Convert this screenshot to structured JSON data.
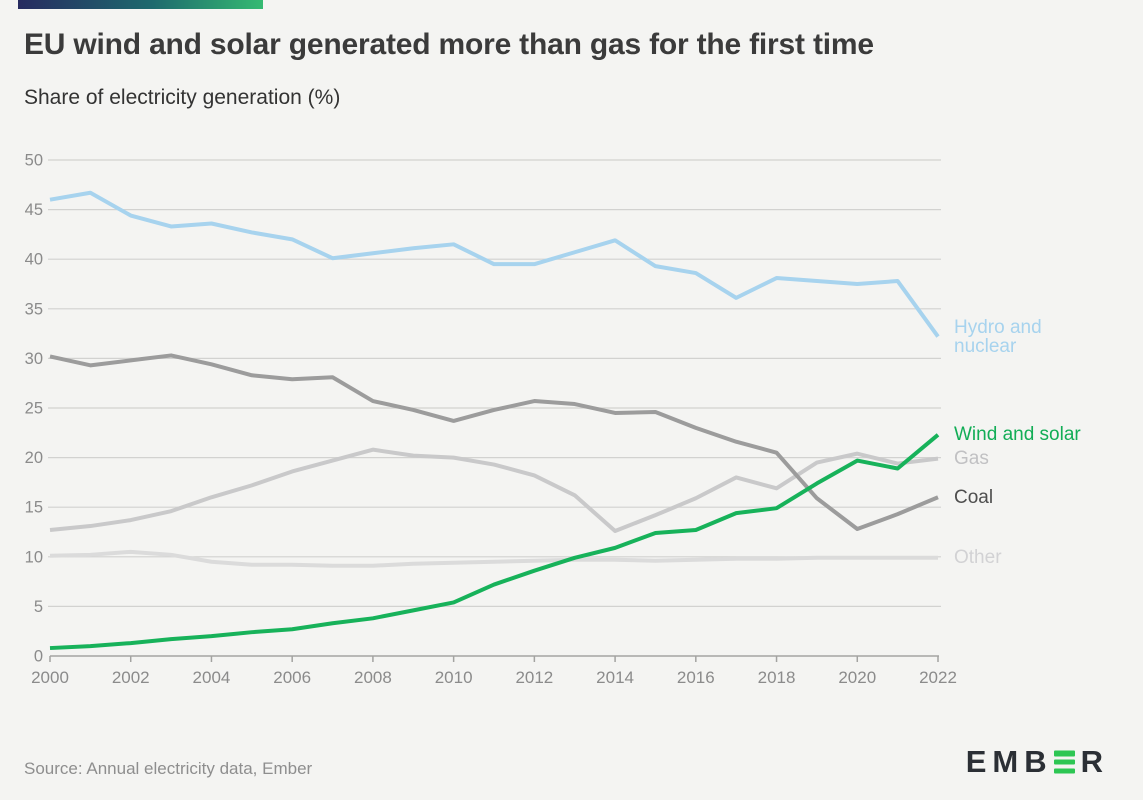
{
  "page": {
    "source": "Source: Annual electricity data, Ember"
  },
  "logo": {
    "text_before": "EMB",
    "text_after": "R",
    "text_color": "#2b2f35",
    "green_e_bar_color": "#2dc653"
  },
  "accent_bar": {
    "gradient_start": "#272b60",
    "gradient_end": "#35ba72"
  },
  "chart_data": {
    "type": "line",
    "title": "EU wind and solar generated more than gas for the first time",
    "subtitle": "Share of electricity generation (%)",
    "xlabel": "",
    "ylabel": "Share of electricity generation (%)",
    "x": [
      2000,
      2001,
      2002,
      2003,
      2004,
      2005,
      2006,
      2007,
      2008,
      2009,
      2010,
      2011,
      2012,
      2013,
      2014,
      2015,
      2016,
      2017,
      2018,
      2019,
      2020,
      2021,
      2022
    ],
    "xticks": [
      2000,
      2002,
      2004,
      2006,
      2008,
      2010,
      2012,
      2014,
      2016,
      2018,
      2020,
      2022
    ],
    "ylim": [
      0,
      50
    ],
    "yticks": [
      0,
      5,
      10,
      15,
      20,
      25,
      30,
      35,
      40,
      45,
      50
    ],
    "grid": true,
    "legend_position": "end-of-line-labels",
    "grid_color": "#d2d2d0",
    "axis_color": "#a3a3a1",
    "tick_label_color": "#8b8b8b",
    "series": [
      {
        "name": "Other",
        "label": "Other",
        "color": "#dbdbdb",
        "label_color": "#d2d2d4",
        "values": [
          10.1,
          10.2,
          10.5,
          10.2,
          9.5,
          9.2,
          9.2,
          9.1,
          9.1,
          9.3,
          9.4,
          9.5,
          9.6,
          9.7,
          9.7,
          9.6,
          9.7,
          9.8,
          9.8,
          9.9,
          9.9,
          9.9,
          9.9
        ]
      },
      {
        "name": "Gas",
        "label": "Gas",
        "color": "#c9c9ca",
        "label_color": "#c1c1c3",
        "values": [
          12.7,
          13.1,
          13.7,
          14.6,
          16.0,
          17.2,
          18.6,
          19.7,
          20.8,
          20.2,
          20.0,
          19.3,
          18.2,
          16.2,
          12.6,
          14.2,
          15.9,
          18.0,
          16.9,
          19.5,
          20.4,
          19.4,
          19.9
        ]
      },
      {
        "name": "Coal",
        "label": "Coal",
        "color": "#9c9c9c",
        "label_color": "#4e4e4e",
        "values": [
          30.2,
          29.3,
          29.8,
          30.3,
          29.4,
          28.3,
          27.9,
          28.1,
          25.7,
          24.8,
          23.7,
          24.8,
          25.7,
          25.4,
          24.5,
          24.6,
          23.0,
          21.6,
          20.5,
          15.9,
          12.8,
          14.3,
          16.0
        ]
      },
      {
        "name": "Hydro and nuclear",
        "label": "Hydro and nuclear",
        "color": "#a7d3ee",
        "label_color": "#a7d3ee",
        "values": [
          46.0,
          46.7,
          44.4,
          43.3,
          43.6,
          42.7,
          42.0,
          40.1,
          40.6,
          41.1,
          41.5,
          39.5,
          39.5,
          40.7,
          41.9,
          39.3,
          38.6,
          36.1,
          38.1,
          37.8,
          37.5,
          37.8,
          32.2
        ]
      },
      {
        "name": "Wind and solar",
        "label": "Wind and solar",
        "color": "#17b25a",
        "label_color": "#12ad56",
        "values": [
          0.8,
          1.0,
          1.3,
          1.7,
          2.0,
          2.4,
          2.7,
          3.3,
          3.8,
          4.6,
          5.4,
          7.2,
          8.6,
          9.9,
          10.9,
          12.4,
          12.7,
          14.4,
          14.9,
          17.4,
          19.7,
          18.9,
          22.3
        ]
      }
    ]
  }
}
